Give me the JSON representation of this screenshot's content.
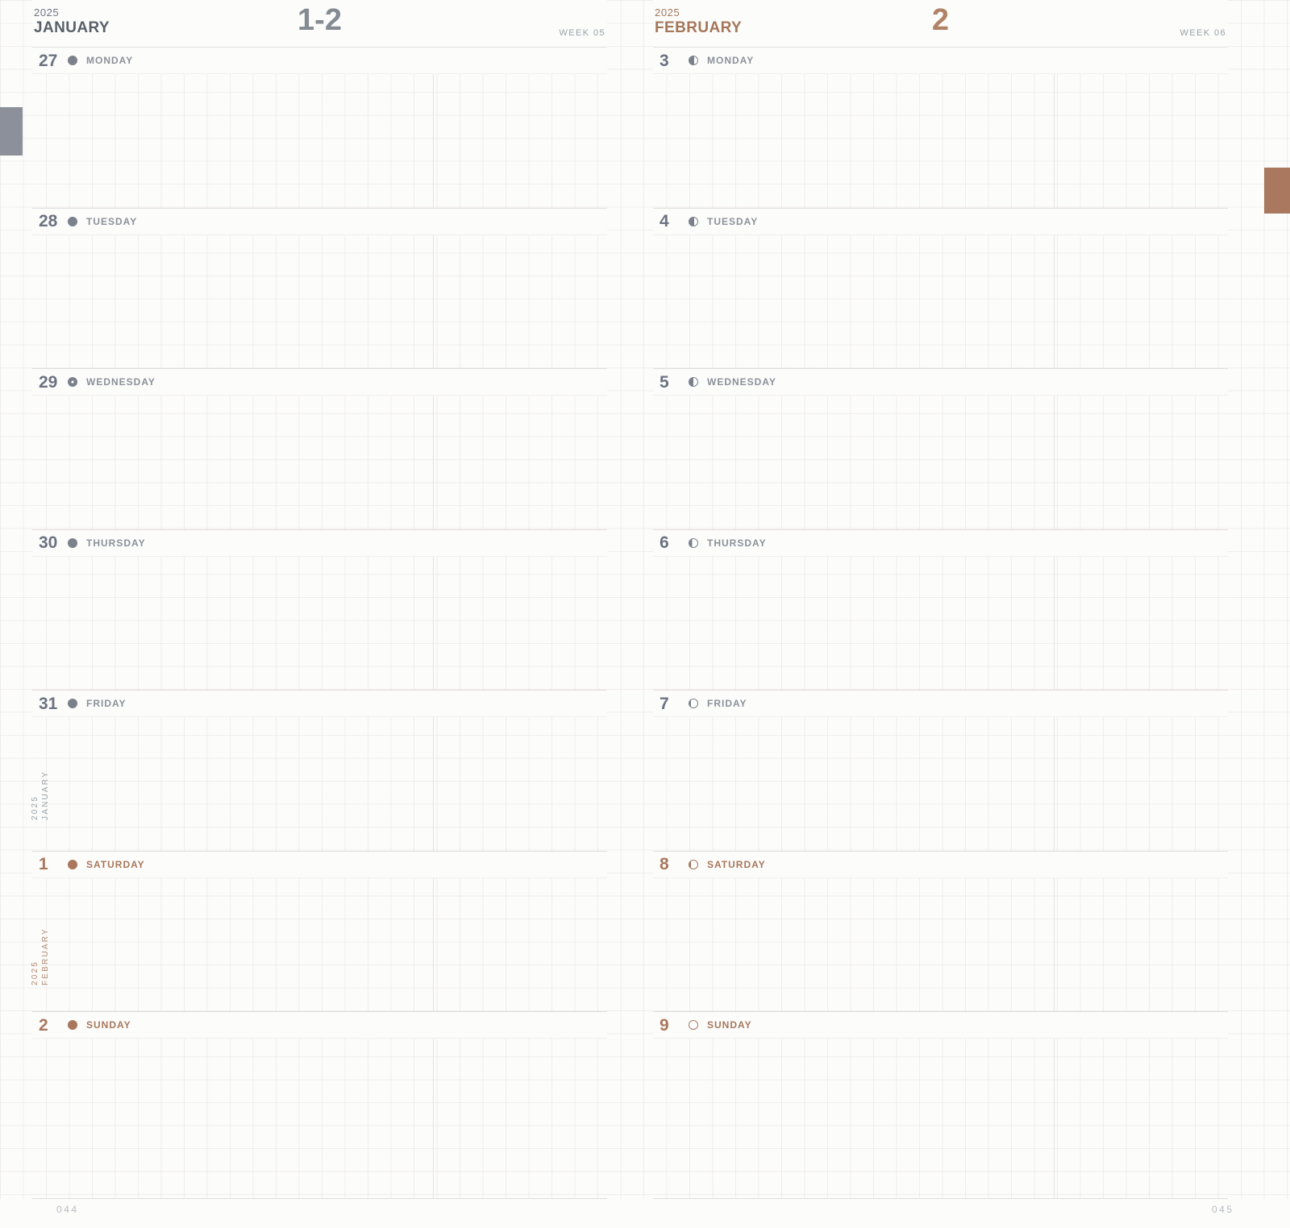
{
  "sheet": {
    "left_page": {
      "year": "2025",
      "month": "JANUARY",
      "title_number": "1-2",
      "week_label": "WEEK 05",
      "page_number": "044",
      "days": [
        {
          "date": "27",
          "name": "MONDAY",
          "moon": "full-dark",
          "tone": "gray"
        },
        {
          "date": "28",
          "name": "TUESDAY",
          "moon": "full-dark",
          "tone": "gray"
        },
        {
          "date": "29",
          "name": "WEDNESDAY",
          "moon": "new-moon",
          "tone": "gray"
        },
        {
          "date": "30",
          "name": "THURSDAY",
          "moon": "full-dark",
          "tone": "gray"
        },
        {
          "date": "31",
          "name": "FRIDAY",
          "moon": "full-dark",
          "tone": "gray"
        },
        {
          "date": "1",
          "name": "SATURDAY",
          "moon": "full-dark",
          "tone": "accent"
        },
        {
          "date": "2",
          "name": "SUNDAY",
          "moon": "full-dark",
          "tone": "accent"
        }
      ],
      "margin_labels": [
        {
          "year": "2025",
          "month": "JANUARY",
          "tone": "gray"
        },
        {
          "year": "2025",
          "month": "FEBRUARY",
          "tone": "accent"
        }
      ]
    },
    "right_page": {
      "year": "2025",
      "month": "FEBRUARY",
      "title_number": "2",
      "week_label": "WEEK 06",
      "page_number": "045",
      "days": [
        {
          "date": "3",
          "name": "MONDAY",
          "moon": "two-thirds-dark",
          "tone": "gray"
        },
        {
          "date": "4",
          "name": "TUESDAY",
          "moon": "two-thirds-dark",
          "tone": "gray"
        },
        {
          "date": "5",
          "name": "WEDNESDAY",
          "moon": "half-dark",
          "tone": "gray"
        },
        {
          "date": "6",
          "name": "THURSDAY",
          "moon": "one-third-dark",
          "tone": "gray"
        },
        {
          "date": "7",
          "name": "FRIDAY",
          "moon": "sliver-dark",
          "tone": "gray"
        },
        {
          "date": "8",
          "name": "SATURDAY",
          "moon": "sliver-dark",
          "tone": "accent"
        },
        {
          "date": "9",
          "name": "SUNDAY",
          "moon": "open",
          "tone": "accent"
        }
      ]
    },
    "colors": {
      "accent": "#a8775c",
      "gray": "#6b7280",
      "tab_gray": "#8b909a",
      "tab_brown": "#a9785f"
    }
  }
}
